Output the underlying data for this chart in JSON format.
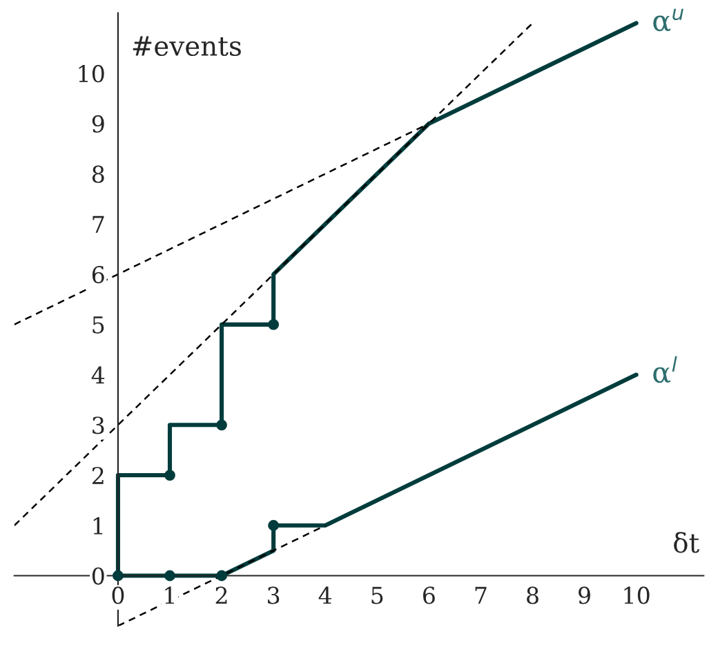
{
  "chart_data": {
    "type": "line",
    "xlabel": "δt",
    "ylabel": "#events",
    "xlim": [
      -2,
      11.3
    ],
    "ylim": [
      -1,
      11.2
    ],
    "xticks": [
      0,
      1,
      2,
      3,
      4,
      5,
      6,
      7,
      8,
      9,
      10
    ],
    "yticks": [
      0,
      1,
      2,
      3,
      4,
      5,
      6,
      7,
      8,
      9,
      10
    ],
    "grid": false,
    "legend": false,
    "series": [
      {
        "name": "α$^{u}$",
        "color": "#003c3c",
        "x": [
          0,
          0,
          1,
          1,
          2,
          2,
          3,
          3,
          6,
          10
        ],
        "values": [
          0,
          2,
          2,
          3,
          3,
          5,
          5,
          6,
          9,
          11
        ],
        "line_style": "solid",
        "marker": "none"
      },
      {
        "name": "α$^{l}$",
        "color": "#003c3c",
        "x": [
          0,
          2,
          3,
          3,
          4,
          10
        ],
        "values": [
          0,
          0,
          0.5,
          1,
          1,
          4
        ],
        "line_style": "solid",
        "marker": "none"
      },
      {
        "type": "scatter",
        "color": "#003c3c",
        "x": [
          1,
          2,
          3
        ],
        "values": [
          2,
          3,
          5
        ],
        "marker": "circle"
      },
      {
        "type": "scatter",
        "color": "#003c3c",
        "x": [
          0,
          1,
          2,
          3
        ],
        "values": [
          0,
          0,
          0,
          1
        ],
        "marker": "circle"
      },
      {
        "color": "#000000",
        "x": [
          -2,
          6
        ],
        "values": [
          5,
          9
        ],
        "line_style": "dashed",
        "marker": "none"
      },
      {
        "color": "#000000",
        "x": [
          -2,
          8
        ],
        "values": [
          1,
          11
        ],
        "line_style": "dashed",
        "marker": "none"
      },
      {
        "color": "#000000",
        "x": [
          0,
          4
        ],
        "values": [
          -1,
          1
        ],
        "line_style": "dashed",
        "marker": "none"
      }
    ]
  }
}
